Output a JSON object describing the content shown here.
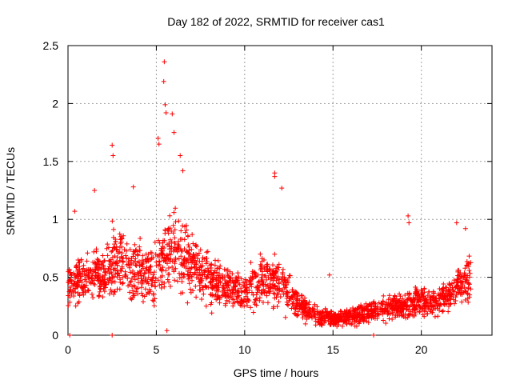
{
  "chart_data": {
    "type": "scatter",
    "title": "Day 182 of 2022, SRMTID for receiver cas1",
    "xlabel": "GPS time / hours",
    "ylabel": "SRMTID / TECUs",
    "xlim": [
      0,
      24
    ],
    "ylim": [
      0,
      2.5
    ],
    "xticks": [
      0,
      5,
      10,
      15,
      20
    ],
    "yticks": [
      0,
      0.5,
      1,
      1.5,
      2,
      2.5
    ],
    "xtick_labels": [
      "0",
      "5",
      "10",
      "15",
      "20"
    ],
    "ytick_labels": [
      "0",
      "0.5",
      "1",
      "1.5",
      "2",
      "2.5"
    ],
    "grid": true,
    "marker": "+",
    "color": "#ff0000",
    "series": [
      {
        "name": "cas1",
        "envelope": {
          "x": [
            0.0,
            0.5,
            1.0,
            1.5,
            2.0,
            2.5,
            3.0,
            3.5,
            4.0,
            4.5,
            5.0,
            5.5,
            6.0,
            6.5,
            7.0,
            7.5,
            8.0,
            8.5,
            9.0,
            9.5,
            10.0,
            10.5,
            11.0,
            11.5,
            12.0,
            12.5,
            13.0,
            13.5,
            14.0,
            14.5,
            15.0,
            15.5,
            16.0,
            16.5,
            17.0,
            17.5,
            18.0,
            18.5,
            19.0,
            19.5,
            20.0,
            20.5,
            21.0,
            21.5,
            22.0,
            22.5,
            22.8
          ],
          "center": [
            0.42,
            0.45,
            0.48,
            0.55,
            0.5,
            0.6,
            0.65,
            0.6,
            0.55,
            0.5,
            0.55,
            0.7,
            0.75,
            0.65,
            0.6,
            0.55,
            0.5,
            0.45,
            0.42,
            0.4,
            0.38,
            0.42,
            0.48,
            0.5,
            0.45,
            0.35,
            0.28,
            0.22,
            0.18,
            0.15,
            0.14,
            0.15,
            0.16,
            0.18,
            0.2,
            0.22,
            0.22,
            0.24,
            0.25,
            0.28,
            0.3,
            0.28,
            0.3,
            0.35,
            0.4,
            0.45,
            0.5
          ],
          "spread": [
            0.2,
            0.22,
            0.25,
            0.3,
            0.3,
            0.35,
            0.38,
            0.35,
            0.35,
            0.32,
            0.35,
            0.4,
            0.42,
            0.38,
            0.35,
            0.3,
            0.28,
            0.25,
            0.22,
            0.2,
            0.2,
            0.22,
            0.28,
            0.3,
            0.26,
            0.18,
            0.15,
            0.13,
            0.1,
            0.09,
            0.08,
            0.08,
            0.09,
            0.1,
            0.11,
            0.12,
            0.12,
            0.13,
            0.14,
            0.15,
            0.16,
            0.15,
            0.16,
            0.18,
            0.2,
            0.22,
            0.24
          ]
        },
        "peaks": [
          {
            "x": 0.38,
            "y": 1.07
          },
          {
            "x": 1.5,
            "y": 1.25
          },
          {
            "x": 2.5,
            "y": 1.64
          },
          {
            "x": 2.55,
            "y": 1.55
          },
          {
            "x": 3.7,
            "y": 1.28
          },
          {
            "x": 5.1,
            "y": 1.7
          },
          {
            "x": 5.15,
            "y": 1.65
          },
          {
            "x": 5.45,
            "y": 2.36
          },
          {
            "x": 5.42,
            "y": 2.19
          },
          {
            "x": 5.5,
            "y": 1.99
          },
          {
            "x": 5.55,
            "y": 1.92
          },
          {
            "x": 5.9,
            "y": 1.91
          },
          {
            "x": 6.0,
            "y": 1.75
          },
          {
            "x": 6.35,
            "y": 1.55
          },
          {
            "x": 6.5,
            "y": 1.42
          },
          {
            "x": 11.7,
            "y": 1.4
          },
          {
            "x": 11.7,
            "y": 1.37
          },
          {
            "x": 12.1,
            "y": 1.27
          },
          {
            "x": 14.8,
            "y": 0.52
          },
          {
            "x": 19.25,
            "y": 1.03
          },
          {
            "x": 19.3,
            "y": 0.97
          },
          {
            "x": 22.0,
            "y": 0.97
          },
          {
            "x": 22.5,
            "y": 0.92
          },
          {
            "x": 0.1,
            "y": 0.0
          },
          {
            "x": 2.5,
            "y": 0.0
          },
          {
            "x": 17.3,
            "y": 0.0
          },
          {
            "x": 5.6,
            "y": 0.04
          }
        ]
      }
    ]
  }
}
